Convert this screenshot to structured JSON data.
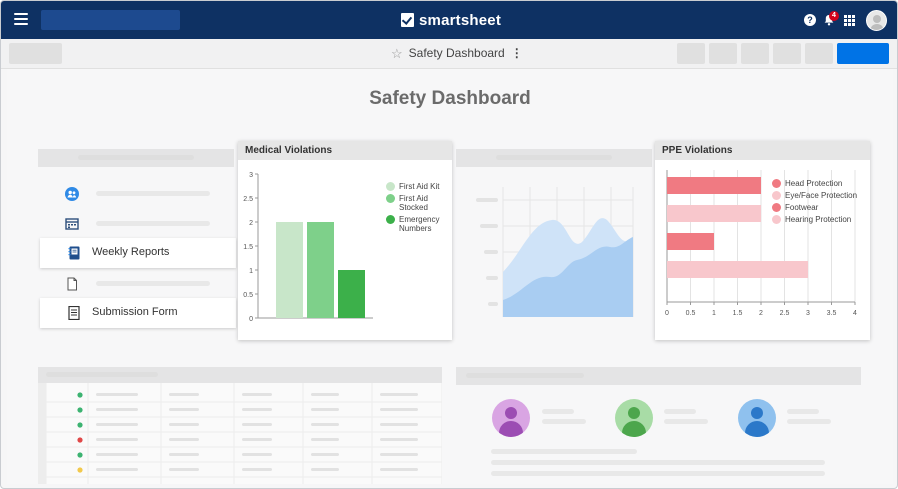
{
  "topbar": {
    "brand": "smartsheet",
    "help_icon_glyph": "?",
    "notification_count": "4",
    "icons": [
      "menu-icon",
      "help-icon",
      "bell-icon",
      "apps-grid-icon",
      "user-avatar"
    ]
  },
  "toolbar": {
    "sheet_title": "Safety Dashboard",
    "star_glyph": "☆",
    "more_glyph": "⋮"
  },
  "dashboard": {
    "title": "Safety Dashboard",
    "nav": [
      {
        "label": "",
        "icon": "contacts-icon"
      },
      {
        "label": "",
        "icon": "calendar-icon"
      },
      {
        "label": "Weekly Reports",
        "icon": "notebook-icon"
      },
      {
        "label": "",
        "icon": "document-icon"
      },
      {
        "label": "Submission Form",
        "icon": "form-icon"
      }
    ],
    "colors": {
      "header": "#0e3163",
      "primary_button": "#0073e6",
      "green_light": "#c8e6c9",
      "green_mid": "#7ed08a",
      "green_dark": "#3cb04a",
      "red": "#f07a82",
      "pink": "#f8c7cc",
      "area_blue": "#a9cdf2"
    }
  },
  "medical_widget": {
    "title": "Medical Violations"
  },
  "ppe_widget": {
    "title": "PPE Violations"
  },
  "chart_data": [
    {
      "type": "bar",
      "title": "Medical Violations",
      "categories": [
        "First Aid Kit",
        "First Aid Stocked",
        "Emergency Numbers"
      ],
      "values": [
        2,
        2,
        1
      ],
      "colors": [
        "#c8e6c9",
        "#7ed08a",
        "#3cb04a"
      ],
      "yticks": [
        "0",
        "0.5",
        "1",
        "1.5",
        "2",
        "2.5",
        "3"
      ],
      "ylim": [
        0,
        3
      ],
      "legend": [
        "First Aid Kit",
        "First Aid Stocked",
        "Emergency Numbers"
      ],
      "legend_lines": [
        [
          "First Aid Kit"
        ],
        [
          "First Aid",
          "Stocked"
        ],
        [
          "Emergency",
          "Numbers"
        ]
      ],
      "legend_position": "top-right",
      "grid": false
    },
    {
      "type": "bar",
      "orientation": "horizontal",
      "title": "PPE Violations",
      "categories": [
        "Head Protection",
        "Eye/Face Protection",
        "Footwear",
        "Hearing Protection"
      ],
      "values": [
        2,
        2,
        1,
        3
      ],
      "colors": [
        "#f07a82",
        "#f8c7cc",
        "#f07a82",
        "#f8c7cc"
      ],
      "xticks": [
        "0",
        "0.5",
        "1",
        "1.5",
        "2",
        "2.5",
        "3",
        "3.5",
        "4"
      ],
      "xlim": [
        0,
        4
      ],
      "legend": [
        "Head Protection",
        "Eye/Face Protection",
        "Footwear",
        "Hearing Protection"
      ],
      "legend_position": "top-right",
      "grid": true
    }
  ]
}
